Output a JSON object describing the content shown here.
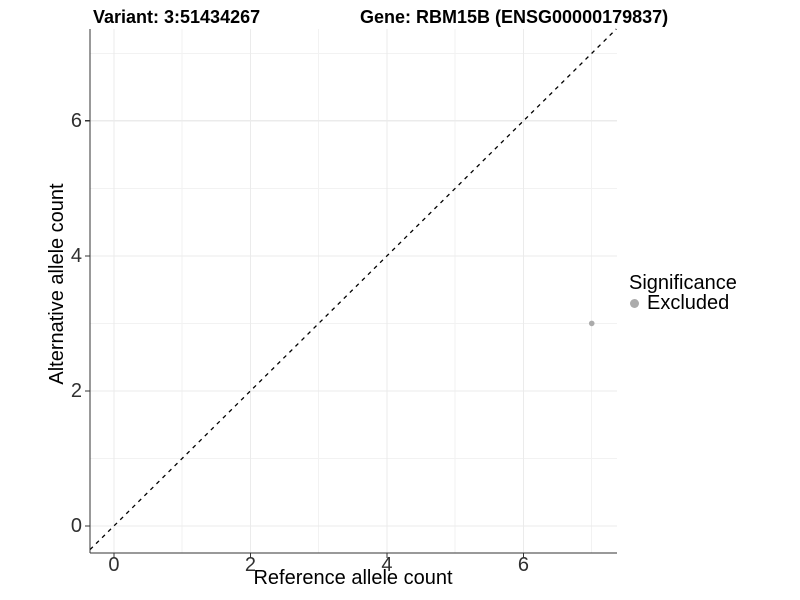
{
  "header": {
    "variant": "Variant: 3:51434267",
    "gene": "Gene: RBM15B (ENSG00000179837)"
  },
  "chart_data": {
    "type": "scatter",
    "title": "Variant: 3:51434267    Gene: RBM15B (ENSG00000179837)",
    "xlabel": "Reference allele count",
    "ylabel": "Alternative allele count",
    "xlim": [
      -0.35,
      7.37
    ],
    "ylim": [
      -0.4,
      7.36
    ],
    "x_ticks": [
      0,
      2,
      4,
      6
    ],
    "y_ticks": [
      0,
      2,
      4,
      6
    ],
    "x_minor_ticks": [
      1,
      3,
      5,
      7
    ],
    "y_minor_ticks": [
      1,
      3,
      5,
      7
    ],
    "grid": true,
    "legend": {
      "title": "Significance",
      "position": "right",
      "entries": [
        "Excluded"
      ]
    },
    "series": [
      {
        "name": "Excluded",
        "color": "#ababab",
        "points": [
          {
            "x": 7,
            "y": 3
          }
        ]
      }
    ],
    "reference_line": {
      "type": "identity",
      "slope": 1,
      "intercept": 0,
      "style": "dashed",
      "color": "#000000"
    }
  },
  "colors": {
    "background": "#ffffff",
    "grid_major": "#ebebeb",
    "grid_minor": "#f2f2f2",
    "axis_line": "#333333",
    "tick_text": "#303030",
    "point": "#ababab"
  }
}
